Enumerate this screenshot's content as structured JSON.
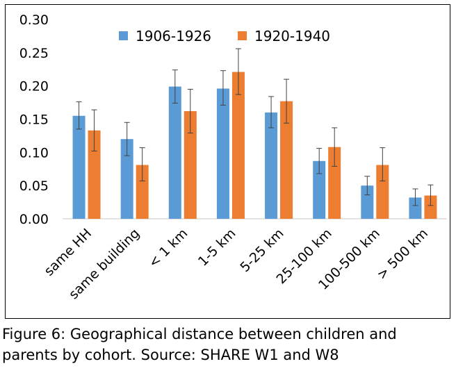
{
  "chart_data": {
    "type": "bar",
    "categories": [
      "same HH",
      "same building",
      "< 1 km",
      "1-5 km",
      "5-25 km",
      "25-100 km",
      "100-500 km",
      "> 500 km"
    ],
    "series": [
      {
        "name": "1906-1926",
        "color": "#5B9BD5",
        "values": [
          0.155,
          0.12,
          0.199,
          0.196,
          0.16,
          0.087,
          0.05,
          0.032
        ],
        "error_low": [
          0.135,
          0.095,
          0.174,
          0.171,
          0.137,
          0.068,
          0.036,
          0.02
        ],
        "error_high": [
          0.176,
          0.145,
          0.224,
          0.223,
          0.184,
          0.106,
          0.064,
          0.045
        ]
      },
      {
        "name": "1920-1940",
        "color": "#ED7D31",
        "values": [
          0.133,
          0.081,
          0.162,
          0.221,
          0.177,
          0.108,
          0.081,
          0.035
        ],
        "error_low": [
          0.102,
          0.057,
          0.129,
          0.187,
          0.144,
          0.079,
          0.057,
          0.02
        ],
        "error_high": [
          0.164,
          0.107,
          0.195,
          0.256,
          0.21,
          0.137,
          0.107,
          0.051
        ]
      }
    ],
    "yticks": [
      "0.00",
      "0.05",
      "0.10",
      "0.15",
      "0.20",
      "0.25",
      "0.30"
    ],
    "ylim": [
      0,
      0.3
    ],
    "xlabel": "",
    "ylabel": "",
    "grid": false,
    "legend_position": "top"
  },
  "caption": {
    "line1": "Figure 6: Geographical distance between children and",
    "line2": "parents by cohort. Source: SHARE W1 and W8"
  }
}
